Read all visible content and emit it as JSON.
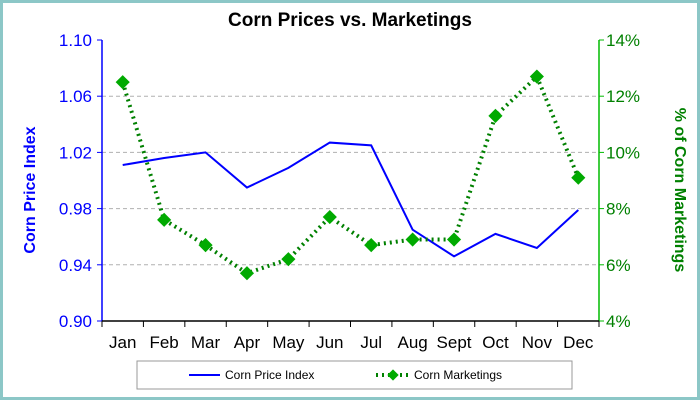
{
  "chart_data": {
    "type": "line",
    "title": "Corn Prices vs. Marketings",
    "categories": [
      "Jan",
      "Feb",
      "Mar",
      "Apr",
      "May",
      "Jun",
      "Jul",
      "Aug",
      "Sept",
      "Oct",
      "Nov",
      "Dec"
    ],
    "ylabel_left": "Corn Price Index",
    "ylabel_right": "% of Corn Marketings",
    "y_left": {
      "min": 0.9,
      "max": 1.1,
      "ticks": [
        "0.90",
        "0.94",
        "0.98",
        "1.02",
        "1.06",
        "1.10"
      ]
    },
    "y_right": {
      "min": 4,
      "max": 14,
      "ticks": [
        "4%",
        "6%",
        "8%",
        "10%",
        "12%",
        "14%"
      ]
    },
    "grid": "horizontal dashed",
    "legend_position": "bottom",
    "series": [
      {
        "name": "Corn Price Index",
        "axis": "left",
        "style": "solid",
        "color": "#0000ff",
        "values": [
          1.011,
          1.016,
          1.02,
          0.995,
          1.009,
          1.027,
          1.025,
          0.965,
          0.946,
          0.962,
          0.952,
          0.979
        ]
      },
      {
        "name": "Corn Marketings",
        "axis": "right",
        "style": "dotted-diamond",
        "color": "#008000",
        "marker_color": "#00aa00",
        "values": [
          12.5,
          7.6,
          6.7,
          5.7,
          6.2,
          7.7,
          6.7,
          6.9,
          6.9,
          11.3,
          12.7,
          9.1
        ]
      }
    ]
  }
}
